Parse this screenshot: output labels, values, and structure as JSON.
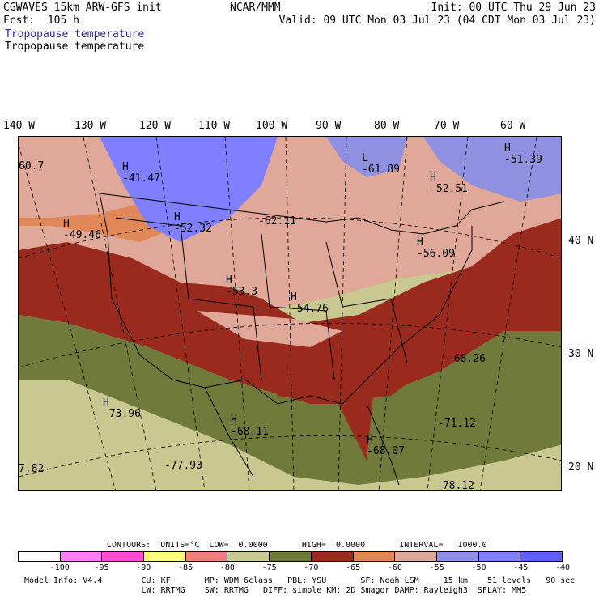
{
  "header": {
    "model": "CGWAVES 15km ARW-GFS init",
    "forecast": "Fcst:  105 h",
    "center": "NCAR/MMM",
    "init": "Init: 00 UTC Thu 29 Jun 23",
    "valid": "Valid: 09 UTC Mon 03 Jul 23 (04 CDT Mon 03 Jul 23)",
    "field_title_1": "Tropopause temperature",
    "field_title_2": "Tropopause temperature"
  },
  "longitude_labels": [
    "140 W",
    "130 W",
    "120 W",
    "110 W",
    "100 W",
    "90 W",
    "80 W",
    "70 W",
    "60 W"
  ],
  "latitude_labels": [
    "40 N",
    "30 N",
    "20 N"
  ],
  "map_labels": [
    {
      "mark": "H",
      "value": "-41.47"
    },
    {
      "mark": "H",
      "value": "-49.46"
    },
    {
      "mark": "H",
      "value": "-52.32"
    },
    {
      "mark": "",
      "value": "-62.11"
    },
    {
      "mark": "L",
      "value": "-61.89"
    },
    {
      "mark": "H",
      "value": "-52.51"
    },
    {
      "mark": "H",
      "value": "-51.39"
    },
    {
      "mark": "H",
      "value": "-56.09"
    },
    {
      "mark": "H",
      "value": "-53.3"
    },
    {
      "mark": "H",
      "value": "-54.76"
    },
    {
      "mark": "",
      "value": "-68.26"
    },
    {
      "mark": "H",
      "value": "-73.96"
    },
    {
      "mark": "H",
      "value": "-68.11"
    },
    {
      "mark": "H",
      "value": "-68.07"
    },
    {
      "mark": "",
      "value": "-71.12"
    },
    {
      "mark": "",
      "value": "-77.93"
    },
    {
      "mark": "",
      "value": "-78.12"
    },
    {
      "mark": "",
      "value": "60.7"
    },
    {
      "mark": "",
      "value": "7.82"
    }
  ],
  "contours_info": "CONTOURS:  UNITS=°C  LOW=  0.0000       HIGH=  0.0000       INTERVAL=   1000.0",
  "colorbar": {
    "colors": [
      "#ffffff",
      "#ff7ff0",
      "#ff4fd0",
      "#ffff7f",
      "#f08080",
      "#c8c890",
      "#707a3a",
      "#9a2a1e",
      "#e08858",
      "#e0a898",
      "#9090e0",
      "#7f7fff",
      "#6060ff"
    ],
    "labels": [
      "-100",
      "-95",
      "-90",
      "-85",
      "-80",
      "-75",
      "-70",
      "-65",
      "-60",
      "-55",
      "-50",
      "-45",
      "-40",
      "°C"
    ]
  },
  "footer": {
    "line1": "Model Info: V4.4        CU: KF       MP: WDM 6class   PBL: YSU       SF: Noah LSM     15 km    51 levels   90 sec",
    "line2": "                        LW: RRTMG    SW: RRTMG   DIFF: simple KM: 2D Smagor DAMP: Rayleigh3  SFLAY: MM5"
  }
}
